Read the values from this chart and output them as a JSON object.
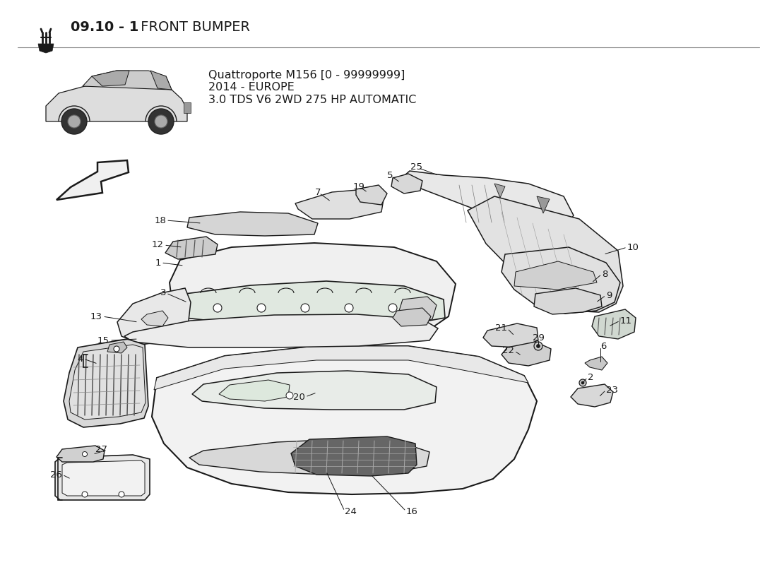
{
  "bg_color": "#ffffff",
  "line_color": "#1a1a1a",
  "title_bold": "09.10 - 1",
  "title_normal": " FRONT BUMPER",
  "subtitle1": "Quattroporte M156 [0 - 99999999]",
  "subtitle2": "2014 - EUROPE",
  "subtitle3": "3.0 TDS V6 2WD 275 HP AUTOMATIC",
  "title_fontsize": 14,
  "subtitle_fontsize": 11.5,
  "part_label_fontsize": 9.5,
  "fig_width": 11.0,
  "fig_height": 8.0,
  "dpi": 100
}
